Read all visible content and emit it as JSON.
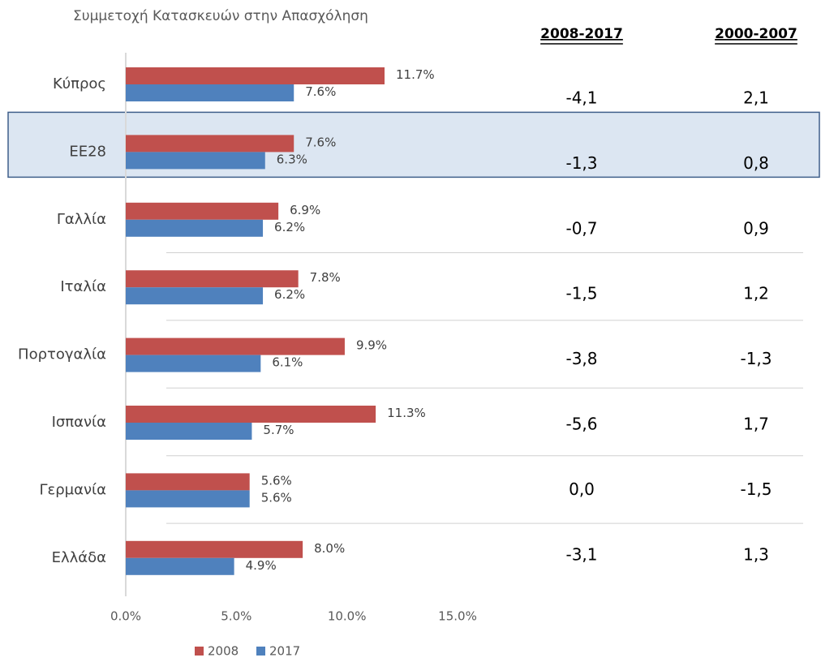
{
  "chart_data": {
    "type": "bar",
    "orientation": "horizontal",
    "title": "Συμμετοχή Κατασκευών στην Απασχόληση",
    "categories": [
      "Κύπρος",
      "ΕΕ28",
      "Γαλλία",
      "Ιταλία",
      "Πορτογαλία",
      "Ισπανία",
      "Γερμανία",
      "Ελλάδα"
    ],
    "series": [
      {
        "name": "2008",
        "color": "#c0504d",
        "values": [
          11.7,
          7.6,
          6.9,
          7.8,
          9.9,
          11.3,
          5.6,
          8.0
        ],
        "value_labels": [
          "11.7%",
          "7.6%",
          "6.9%",
          "7.8%",
          "9.9%",
          "11.3%",
          "5.6%",
          "8.0%"
        ]
      },
      {
        "name": "2017",
        "color": "#4f81bd",
        "values": [
          7.6,
          6.3,
          6.2,
          6.2,
          6.1,
          5.7,
          5.6,
          4.9
        ],
        "value_labels": [
          "7.6%",
          "6.3%",
          "6.2%",
          "6.2%",
          "6.1%",
          "5.7%",
          "5.6%",
          "4.9%"
        ]
      }
    ],
    "xlim": [
      0,
      15
    ],
    "xticks": [
      {
        "value": 0,
        "label": "0.0%"
      },
      {
        "value": 5,
        "label": "5.0%"
      },
      {
        "value": 10,
        "label": "10.0%"
      },
      {
        "value": 15,
        "label": "15.0%"
      }
    ],
    "legend": "bottom"
  },
  "table": {
    "columns": [
      "2008-2017",
      "2000-2007"
    ],
    "rows": [
      [
        "-4,1",
        "2,1"
      ],
      [
        "-1,3",
        "0,8"
      ],
      [
        "-0,7",
        "0,9"
      ],
      [
        "-1,5",
        "1,2"
      ],
      [
        "-3,8",
        "-1,3"
      ],
      [
        "-5,6",
        "1,7"
      ],
      [
        "0,0",
        "-1,5"
      ],
      [
        "-3,1",
        "1,3"
      ]
    ],
    "highlighted_row": 1
  }
}
